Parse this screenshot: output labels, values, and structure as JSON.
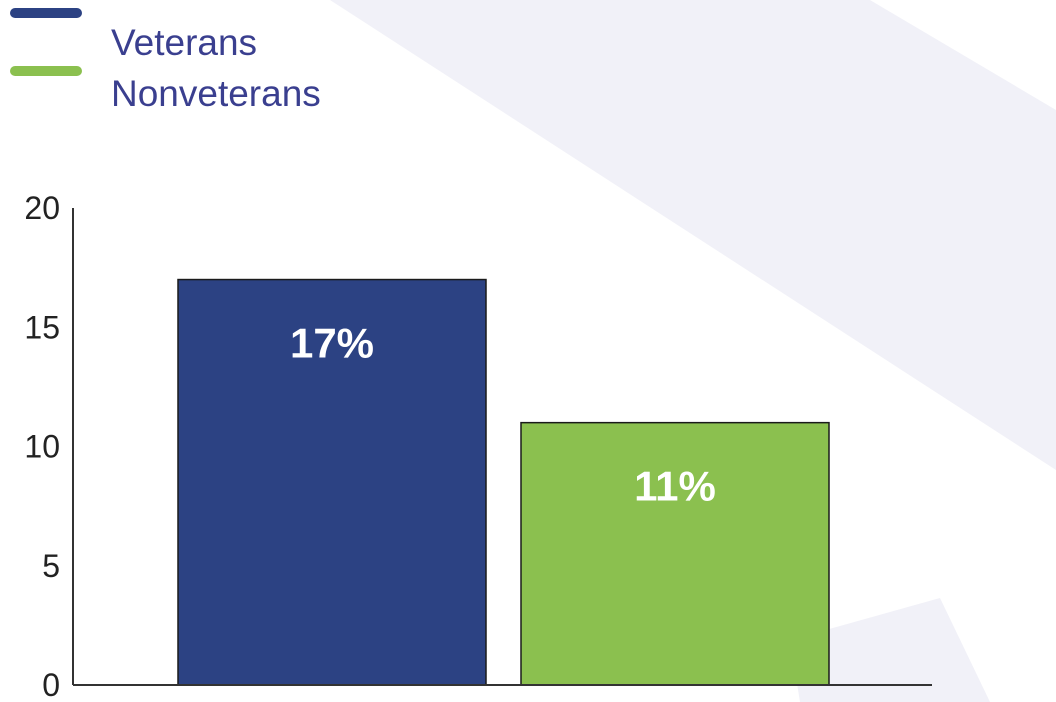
{
  "chart_data": {
    "type": "bar",
    "title": "",
    "xlabel": "",
    "ylabel": "",
    "categories": [
      "Veterans",
      "Nonveterans"
    ],
    "values": [
      17,
      11
    ],
    "data_labels": [
      "17%",
      "11%"
    ],
    "ylim": [
      0,
      20
    ],
    "yticks": [
      0,
      5,
      10,
      15,
      20
    ],
    "ytick_labels": [
      "0",
      "5",
      "10",
      "15",
      "20"
    ],
    "grid": false,
    "legend_position": "top-left",
    "legend": [
      {
        "label": "Veterans",
        "color": "#2c4283"
      },
      {
        "label": "Nonveterans",
        "color": "#8bc04f"
      }
    ],
    "colors": [
      "#2c4283",
      "#8bc04f"
    ]
  },
  "colors": {
    "legend_text": "#3a3f8f",
    "axis": "#333333",
    "background_accent": "#f1f1f8"
  }
}
